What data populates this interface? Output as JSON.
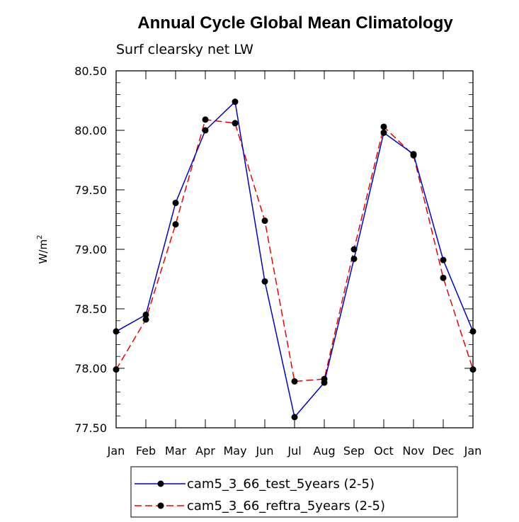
{
  "chart_data": {
    "type": "line",
    "title": "Annual Cycle Global Mean Climatology",
    "subtitle": "Surf clearsky net LW",
    "ylabel": "W/m",
    "ylabel_sup": "2",
    "xlabel": "",
    "categories": [
      "Jan",
      "Feb",
      "Mar",
      "Apr",
      "May",
      "Jun",
      "Jul",
      "Aug",
      "Sep",
      "Oct",
      "Nov",
      "Dec",
      "Jan"
    ],
    "ylim": [
      77.5,
      80.5
    ],
    "yticks": [
      "77.50",
      "78.00",
      "78.50",
      "79.00",
      "79.50",
      "80.00",
      "80.50"
    ],
    "grid": false,
    "legend_position": "bottom-center",
    "series": [
      {
        "name": "cam5_3_66_test_5years (2-5)",
        "color": "#0000cc",
        "dash": "solid",
        "values": [
          78.31,
          78.45,
          79.39,
          80.0,
          80.24,
          78.73,
          77.59,
          77.88,
          78.92,
          79.98,
          79.8,
          78.91,
          78.31
        ]
      },
      {
        "name": "cam5_3_66_reftra_5years (2-5)",
        "color": "#ee0000",
        "dash": "dashed",
        "values": [
          77.99,
          78.41,
          79.21,
          80.09,
          80.06,
          79.24,
          77.89,
          77.91,
          79.0,
          80.03,
          79.79,
          78.76,
          77.99
        ]
      }
    ]
  }
}
